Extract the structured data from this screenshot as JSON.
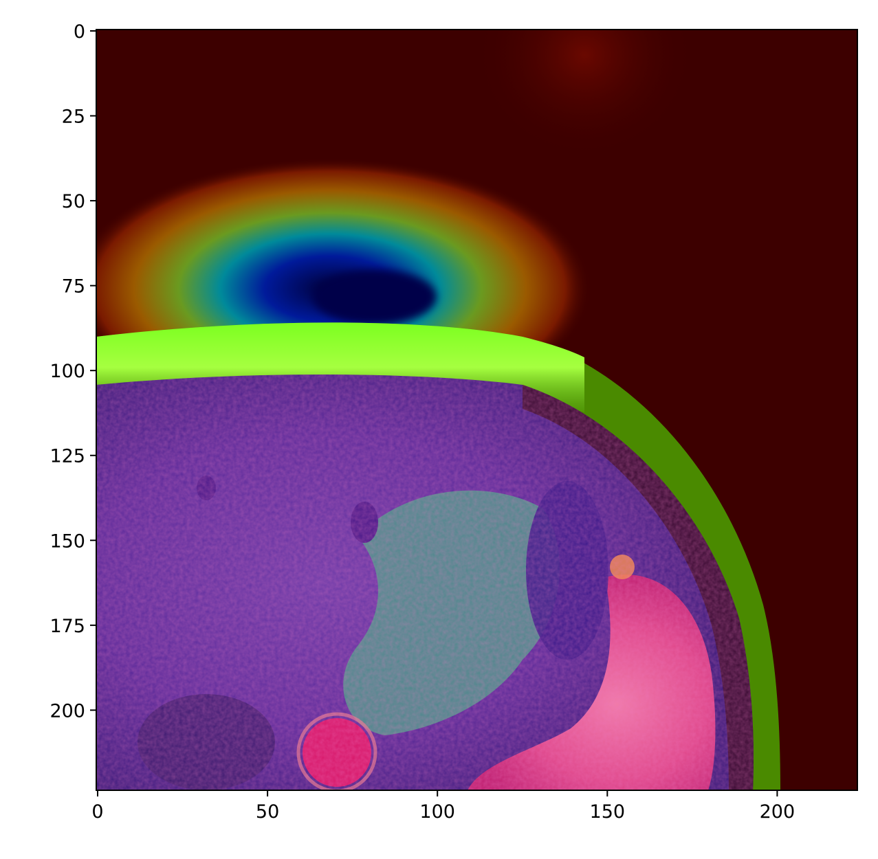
{
  "figure": {
    "x_axis": {
      "ticks": [
        0,
        50,
        100,
        150,
        200
      ],
      "tick_labels": [
        "0",
        "50",
        "100",
        "150",
        "200"
      ]
    },
    "y_axis": {
      "ticks": [
        0,
        25,
        50,
        75,
        100,
        125,
        150,
        175,
        200
      ],
      "tick_labels": [
        "0",
        "25",
        "50",
        "75",
        "100",
        "125",
        "150",
        "175",
        "200"
      ]
    },
    "image_description": "MRI slice overlaid with a jet-colormap saliency heatmap",
    "colors": {
      "background_dark": "#3d0000",
      "heat_blue": "#00005a",
      "heat_green": "#7cff20",
      "tissue_purple": "#5a2a9a",
      "tissue_pink": "#e0287a",
      "tissue_teal": "#4a9a8a"
    }
  }
}
